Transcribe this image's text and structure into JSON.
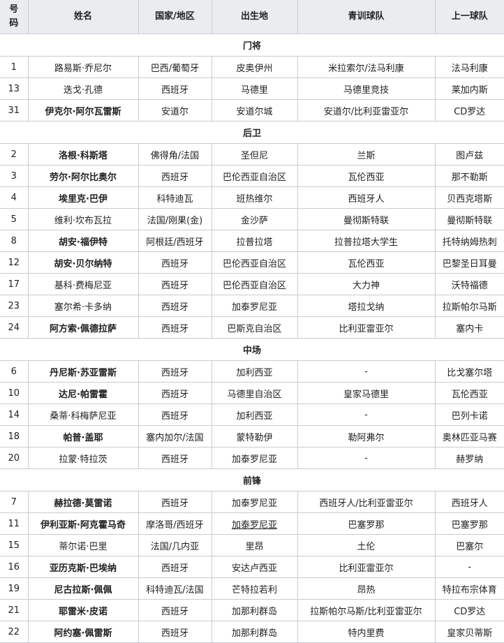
{
  "table": {
    "columns": [
      "号码",
      "姓名",
      "国家/地区",
      "出生地",
      "青训球队",
      "上一球队"
    ],
    "border_color": "#c8ccd1",
    "header_bg": "#eaecf0",
    "text_color": "#202122",
    "sections": [
      {
        "title": "门将",
        "rows": [
          {
            "no": "1",
            "name": "路易斯·乔尼尔",
            "bold": false,
            "nation": "巴西/葡萄牙",
            "birth": "皮奥伊州",
            "youth": "米拉索尔/法马利康",
            "prev": "法马利康"
          },
          {
            "no": "13",
            "name": "迭戈·孔德",
            "bold": false,
            "nation": "西班牙",
            "birth": "马德里",
            "youth": "马德里竞技",
            "prev": "莱加内斯"
          },
          {
            "no": "31",
            "name": "伊克尔·阿尔瓦雷斯",
            "bold": true,
            "nation": "安道尔",
            "birth": "安道尔城",
            "youth": "安道尔/比利亚雷亚尔",
            "prev": "CD罗达"
          }
        ]
      },
      {
        "title": "后卫",
        "rows": [
          {
            "no": "2",
            "name": "洛根·科斯塔",
            "bold": true,
            "nation": "佛得角/法国",
            "birth": "圣但尼",
            "youth": "兰斯",
            "prev": "图卢兹"
          },
          {
            "no": "3",
            "name": "劳尔·阿尔比奥尔",
            "bold": true,
            "nation": "西班牙",
            "birth": "巴伦西亚自治区",
            "youth": "瓦伦西亚",
            "prev": "那不勒斯"
          },
          {
            "no": "4",
            "name": "埃里克·巴伊",
            "bold": true,
            "nation": "科特迪瓦",
            "birth": "班热维尔",
            "youth": "西班牙人",
            "prev": "贝西克塔斯"
          },
          {
            "no": "5",
            "name": "维利·坎布瓦拉",
            "bold": false,
            "nation": "法国/刚果(金)",
            "birth": "金沙萨",
            "youth": "曼彻斯特联",
            "prev": "曼彻斯特联"
          },
          {
            "no": "8",
            "name": "胡安·福伊特",
            "bold": true,
            "nation": "阿根廷/西班牙",
            "birth": "拉普拉塔",
            "youth": "拉普拉塔大学生",
            "prev": "托特纳姆热刺"
          },
          {
            "no": "12",
            "name": "胡安·贝尔纳特",
            "bold": true,
            "nation": "西班牙",
            "birth": "巴伦西亚自治区",
            "youth": "瓦伦西亚",
            "prev": "巴黎圣日耳曼"
          },
          {
            "no": "17",
            "name": "基科·费梅尼亚",
            "bold": false,
            "nation": "西班牙",
            "birth": "巴伦西亚自治区",
            "youth": "大力神",
            "prev": "沃特福德"
          },
          {
            "no": "23",
            "name": "塞尔希·卡多纳",
            "bold": false,
            "nation": "西班牙",
            "birth": "加泰罗尼亚",
            "youth": "塔拉戈纳",
            "prev": "拉斯帕尔马斯"
          },
          {
            "no": "24",
            "name": "阿方索·佩德拉萨",
            "bold": true,
            "nation": "西班牙",
            "birth": "巴斯克自治区",
            "youth": "比利亚雷亚尔",
            "prev": "塞内卡"
          }
        ]
      },
      {
        "title": "中场",
        "rows": [
          {
            "no": "6",
            "name": "丹尼斯·苏亚雷斯",
            "bold": true,
            "nation": "西班牙",
            "birth": "加利西亚",
            "youth": "-",
            "prev": "比戈塞尔塔"
          },
          {
            "no": "10",
            "name": "达尼·帕雷霍",
            "bold": true,
            "nation": "西班牙",
            "birth": "马德里自治区",
            "youth": "皇家马德里",
            "prev": "瓦伦西亚"
          },
          {
            "no": "14",
            "name": "桑蒂·科梅萨尼亚",
            "bold": false,
            "nation": "西班牙",
            "birth": "加利西亚",
            "youth": "-",
            "prev": "巴列卡诺"
          },
          {
            "no": "18",
            "name": "帕普·盖耶",
            "bold": true,
            "nation": "塞内加尔/法国",
            "birth": "蒙特勒伊",
            "youth": "勒阿弗尔",
            "prev": "奥林匹亚马赛"
          },
          {
            "no": "20",
            "name": "拉蒙·特拉茨",
            "bold": false,
            "nation": "西班牙",
            "birth": "加泰罗尼亚",
            "youth": "-",
            "prev": "赫罗纳"
          }
        ]
      },
      {
        "title": "前锋",
        "rows": [
          {
            "no": "7",
            "name": "赫拉德·莫雷诺",
            "bold": true,
            "nation": "西班牙",
            "birth": "加泰罗尼亚",
            "youth": "西班牙人/比利亚雷亚尔",
            "prev": "西班牙人"
          },
          {
            "no": "11",
            "name": "伊利亚斯·阿克霍马奇",
            "bold": true,
            "nation": "摩洛哥/西班牙",
            "birth": "加泰罗尼亚",
            "birth_underline": true,
            "youth": "巴塞罗那",
            "prev": "巴塞罗那"
          },
          {
            "no": "15",
            "name": "蒂尔诺·巴里",
            "bold": false,
            "nation": "法国/几内亚",
            "birth": "里昂",
            "youth": "土伦",
            "prev": "巴塞尔"
          },
          {
            "no": "16",
            "name": "亚历克斯·巴埃纳",
            "bold": true,
            "nation": "西班牙",
            "birth": "安达卢西亚",
            "youth": "比利亚雷亚尔",
            "prev": "-"
          },
          {
            "no": "19",
            "name": "尼古拉斯·佩佩",
            "bold": true,
            "nation": "科特迪瓦/法国",
            "birth": "芒特拉若利",
            "youth": "昂热",
            "prev": "特拉布宗体育"
          },
          {
            "no": "21",
            "name": "耶雷米·皮诺",
            "bold": true,
            "nation": "西班牙",
            "birth": "加那利群岛",
            "youth": "拉斯帕尔马斯/比利亚雷亚尔",
            "prev": "CD罗达"
          },
          {
            "no": "22",
            "name": "阿约塞·佩雷斯",
            "bold": true,
            "nation": "西班牙",
            "birth": "加那利群岛",
            "youth": "特内里费",
            "prev": "皇家贝蒂斯"
          }
        ]
      }
    ]
  }
}
